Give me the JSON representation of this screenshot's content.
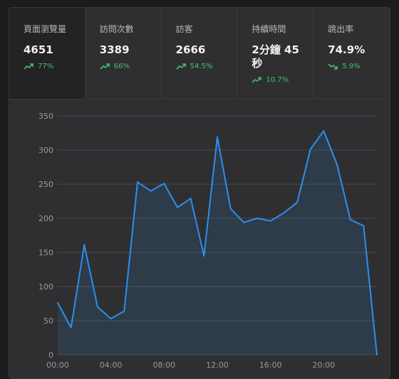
{
  "stats": [
    {
      "label": "頁面瀏覽量",
      "value": "4651",
      "change": "77%",
      "trend": "up"
    },
    {
      "label": "訪問次數",
      "value": "3389",
      "change": "66%",
      "trend": "up"
    },
    {
      "label": "訪客",
      "value": "2666",
      "change": "54.5%",
      "trend": "up"
    },
    {
      "label": "持續時間",
      "value": "2分鐘 45秒",
      "change": "10.7%",
      "trend": "up"
    },
    {
      "label": "跳出率",
      "value": "74.9%",
      "change": "5.9%",
      "trend": "down"
    }
  ],
  "colors": {
    "line": "#2b8ff0",
    "positive": "#43c06b",
    "grid": "#4a4a4e",
    "tick": "#9a9a9e"
  },
  "chart_data": {
    "type": "area",
    "x": [
      "00:00",
      "01:00",
      "02:00",
      "03:00",
      "04:00",
      "05:00",
      "06:00",
      "07:00",
      "08:00",
      "09:00",
      "10:00",
      "11:00",
      "12:00",
      "13:00",
      "14:00",
      "15:00",
      "16:00",
      "17:00",
      "18:00",
      "19:00",
      "20:00",
      "21:00",
      "22:00",
      "23:00",
      "24:00"
    ],
    "xticks": [
      "00:00",
      "04:00",
      "08:00",
      "12:00",
      "16:00",
      "20:00"
    ],
    "values": [
      76,
      40,
      161,
      70,
      53,
      64,
      253,
      240,
      251,
      216,
      229,
      145,
      319,
      214,
      194,
      200,
      196,
      208,
      223,
      301,
      328,
      279,
      198,
      189,
      0
    ],
    "ylim": [
      0,
      350
    ],
    "yticks": [
      0,
      50,
      100,
      150,
      200,
      250,
      300,
      350
    ],
    "grid": true
  }
}
